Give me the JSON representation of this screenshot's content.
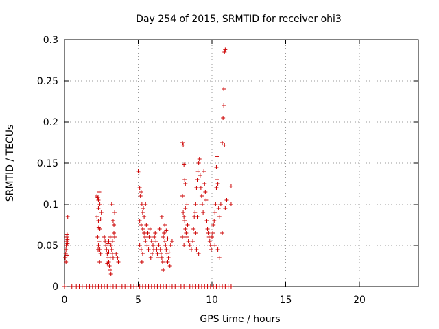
{
  "chart_data": {
    "type": "scatter",
    "title": "Day 254 of 2015, SRMTID for receiver ohi3",
    "xlabel": "GPS time / hours",
    "ylabel": "SRMTID / TECUs",
    "xlim": [
      0,
      24
    ],
    "ylim": [
      0,
      0.3
    ],
    "xticks": [
      "0",
      "5",
      "10",
      "15",
      "20"
    ],
    "xtick_values": [
      0,
      5,
      10,
      15,
      20
    ],
    "yticks": [
      "0",
      "0.05",
      "0.1",
      "0.15",
      "0.2",
      "0.25",
      "0.3"
    ],
    "ytick_values": [
      0,
      0.05,
      0.1,
      0.15,
      0.2,
      0.25,
      0.3
    ],
    "grid": true,
    "marker": "+",
    "color": "#cc0000",
    "series": [
      {
        "name": "SRMTID",
        "points": [
          [
            0.05,
            0.035
          ],
          [
            0.08,
            0.04
          ],
          [
            0.1,
            0.045
          ],
          [
            0.12,
            0.05
          ],
          [
            0.14,
            0.055
          ],
          [
            0.15,
            0.06
          ],
          [
            0.17,
            0.038
          ],
          [
            0.2,
            0.052
          ],
          [
            0.22,
            0.085
          ],
          [
            0.18,
            0.063
          ],
          [
            0.1,
            0.03
          ],
          [
            0.2,
            0.057
          ],
          [
            2.2,
            0.11
          ],
          [
            2.25,
            0.108
          ],
          [
            2.3,
            0.105
          ],
          [
            2.35,
            0.115
          ],
          [
            2.2,
            0.085
          ],
          [
            2.3,
            0.08
          ],
          [
            2.4,
            0.07
          ],
          [
            2.45,
            0.082
          ],
          [
            2.25,
            0.06
          ],
          [
            2.3,
            0.05
          ],
          [
            2.4,
            0.045
          ],
          [
            2.45,
            0.04
          ],
          [
            2.35,
            0.055
          ],
          [
            2.5,
            0.09
          ],
          [
            2.4,
            0.1
          ],
          [
            2.3,
            0.095
          ],
          [
            2.38,
            0.03
          ],
          [
            2.32,
            0.072
          ],
          [
            2.28,
            0.045
          ],
          [
            2.7,
            0.06
          ],
          [
            2.75,
            0.055
          ],
          [
            2.8,
            0.05
          ],
          [
            2.85,
            0.045
          ],
          [
            2.9,
            0.04
          ],
          [
            2.95,
            0.035
          ],
          [
            3.0,
            0.03
          ],
          [
            3.05,
            0.025
          ],
          [
            3.1,
            0.02
          ],
          [
            2.9,
            0.028
          ],
          [
            3.0,
            0.055
          ],
          [
            3.1,
            0.06
          ],
          [
            3.15,
            0.05
          ],
          [
            3.2,
            0.045
          ],
          [
            3.25,
            0.04
          ],
          [
            3.3,
            0.035
          ],
          [
            3.35,
            0.065
          ],
          [
            3.3,
            0.08
          ],
          [
            3.4,
            0.09
          ],
          [
            3.2,
            0.1
          ],
          [
            3.35,
            0.075
          ],
          [
            3.1,
            0.035
          ],
          [
            3.0,
            0.042
          ],
          [
            2.95,
            0.052
          ],
          [
            3.25,
            0.055
          ],
          [
            3.4,
            0.06
          ],
          [
            3.5,
            0.04
          ],
          [
            3.6,
            0.035
          ],
          [
            3.65,
            0.03
          ],
          [
            3.15,
            0.015
          ],
          [
            5.0,
            0.14
          ],
          [
            5.05,
            0.138
          ],
          [
            5.1,
            0.12
          ],
          [
            5.15,
            0.11
          ],
          [
            5.2,
            0.115
          ],
          [
            5.25,
            0.1
          ],
          [
            5.3,
            0.09
          ],
          [
            5.35,
            0.095
          ],
          [
            5.4,
            0.085
          ],
          [
            5.1,
            0.08
          ],
          [
            5.2,
            0.075
          ],
          [
            5.3,
            0.07
          ],
          [
            5.4,
            0.065
          ],
          [
            5.45,
            0.06
          ],
          [
            5.5,
            0.055
          ],
          [
            5.1,
            0.05
          ],
          [
            5.2,
            0.045
          ],
          [
            5.3,
            0.04
          ],
          [
            5.25,
            0.03
          ],
          [
            5.5,
            0.1
          ],
          [
            5.55,
            0.075
          ],
          [
            5.6,
            0.05
          ],
          [
            5.7,
            0.045
          ],
          [
            5.65,
            0.065
          ],
          [
            5.75,
            0.06
          ],
          [
            5.8,
            0.07
          ],
          [
            5.9,
            0.055
          ],
          [
            6.0,
            0.05
          ],
          [
            5.95,
            0.04
          ],
          [
            5.85,
            0.035
          ],
          [
            6.05,
            0.045
          ],
          [
            6.1,
            0.06
          ],
          [
            6.15,
            0.065
          ],
          [
            6.2,
            0.055
          ],
          [
            6.25,
            0.045
          ],
          [
            6.3,
            0.04
          ],
          [
            6.35,
            0.035
          ],
          [
            6.4,
            0.05
          ],
          [
            6.5,
            0.045
          ],
          [
            6.55,
            0.04
          ],
          [
            6.6,
            0.035
          ],
          [
            6.65,
            0.03
          ],
          [
            6.7,
            0.06
          ],
          [
            6.75,
            0.065
          ],
          [
            6.8,
            0.055
          ],
          [
            6.85,
            0.05
          ],
          [
            6.9,
            0.045
          ],
          [
            6.95,
            0.04
          ],
          [
            7.0,
            0.03
          ],
          [
            7.05,
            0.035
          ],
          [
            6.8,
            0.075
          ],
          [
            6.6,
            0.085
          ],
          [
            6.45,
            0.07
          ],
          [
            6.9,
            0.068
          ],
          [
            7.0,
            0.058
          ],
          [
            7.1,
            0.042
          ],
          [
            7.2,
            0.05
          ],
          [
            7.3,
            0.055
          ],
          [
            7.15,
            0.025
          ],
          [
            6.7,
            0.02
          ],
          [
            8.0,
            0.175
          ],
          [
            8.05,
            0.172
          ],
          [
            8.1,
            0.148
          ],
          [
            8.15,
            0.13
          ],
          [
            8.2,
            0.125
          ],
          [
            8.0,
            0.11
          ],
          [
            8.05,
            0.09
          ],
          [
            8.1,
            0.085
          ],
          [
            8.15,
            0.08
          ],
          [
            8.2,
            0.07
          ],
          [
            8.25,
            0.065
          ],
          [
            8.3,
            0.06
          ],
          [
            8.1,
            0.05
          ],
          [
            8.0,
            0.06
          ],
          [
            8.3,
            0.1
          ],
          [
            8.2,
            0.095
          ],
          [
            8.35,
            0.075
          ],
          [
            8.4,
            0.055
          ],
          [
            8.5,
            0.05
          ],
          [
            8.6,
            0.045
          ],
          [
            8.7,
            0.055
          ],
          [
            8.75,
            0.07
          ],
          [
            8.8,
            0.085
          ],
          [
            8.85,
            0.09
          ],
          [
            8.9,
            0.1
          ],
          [
            8.95,
            0.12
          ],
          [
            9.0,
            0.13
          ],
          [
            9.05,
            0.14
          ],
          [
            9.1,
            0.15
          ],
          [
            9.15,
            0.155
          ],
          [
            9.2,
            0.135
          ],
          [
            9.25,
            0.12
          ],
          [
            9.3,
            0.11
          ],
          [
            9.35,
            0.1
          ],
          [
            9.4,
            0.09
          ],
          [
            9.45,
            0.14
          ],
          [
            9.5,
            0.125
          ],
          [
            9.55,
            0.115
          ],
          [
            9.6,
            0.105
          ],
          [
            9.65,
            0.08
          ],
          [
            9.7,
            0.07
          ],
          [
            9.75,
            0.065
          ],
          [
            9.8,
            0.06
          ],
          [
            9.85,
            0.055
          ],
          [
            9.9,
            0.05
          ],
          [
            9.95,
            0.045
          ],
          [
            10.0,
            0.06
          ],
          [
            10.05,
            0.065
          ],
          [
            10.1,
            0.075
          ],
          [
            10.15,
            0.08
          ],
          [
            10.2,
            0.09
          ],
          [
            10.25,
            0.1
          ],
          [
            10.3,
            0.12
          ],
          [
            10.35,
            0.13
          ],
          [
            10.4,
            0.125
          ],
          [
            10.45,
            0.095
          ],
          [
            10.5,
            0.085
          ],
          [
            10.3,
            0.145
          ],
          [
            10.35,
            0.158
          ],
          [
            9.0,
            0.085
          ],
          [
            8.9,
            0.065
          ],
          [
            8.95,
            0.045
          ],
          [
            9.1,
            0.04
          ],
          [
            10.2,
            0.05
          ],
          [
            10.4,
            0.045
          ],
          [
            10.5,
            0.035
          ],
          [
            10.6,
            0.1
          ],
          [
            10.7,
            0.175
          ],
          [
            10.75,
            0.205
          ],
          [
            10.8,
            0.22
          ],
          [
            10.8,
            0.24
          ],
          [
            10.85,
            0.285
          ],
          [
            10.9,
            0.288
          ],
          [
            10.85,
            0.172
          ],
          [
            10.9,
            0.095
          ],
          [
            10.7,
            0.065
          ],
          [
            11.0,
            0.105
          ],
          [
            11.3,
            0.122
          ],
          [
            11.3,
            0.1
          ],
          [
            0,
            0
          ],
          [
            0.5,
            0
          ],
          [
            0.8,
            0
          ],
          [
            1.0,
            0
          ],
          [
            1.2,
            0
          ],
          [
            1.5,
            0
          ],
          [
            1.7,
            0
          ],
          [
            1.9,
            0
          ],
          [
            2.1,
            0
          ],
          [
            2.3,
            0
          ],
          [
            2.5,
            0
          ],
          [
            2.7,
            0
          ],
          [
            2.9,
            0
          ],
          [
            3.1,
            0
          ],
          [
            3.3,
            0
          ],
          [
            3.5,
            0
          ],
          [
            3.7,
            0
          ],
          [
            3.9,
            0
          ],
          [
            4.1,
            0
          ],
          [
            4.3,
            0
          ],
          [
            4.5,
            0
          ],
          [
            4.7,
            0
          ],
          [
            4.9,
            0
          ],
          [
            5.1,
            0
          ],
          [
            5.3,
            0
          ],
          [
            5.5,
            0
          ],
          [
            5.7,
            0
          ],
          [
            5.9,
            0
          ],
          [
            6.1,
            0
          ],
          [
            6.3,
            0
          ],
          [
            6.5,
            0
          ],
          [
            6.7,
            0
          ],
          [
            6.9,
            0
          ],
          [
            7.1,
            0
          ],
          [
            7.3,
            0
          ],
          [
            7.5,
            0
          ],
          [
            7.7,
            0
          ],
          [
            7.9,
            0
          ],
          [
            8.1,
            0
          ],
          [
            8.3,
            0
          ],
          [
            8.5,
            0
          ],
          [
            8.7,
            0
          ],
          [
            8.9,
            0
          ],
          [
            9.1,
            0
          ],
          [
            9.3,
            0
          ],
          [
            9.5,
            0
          ],
          [
            9.7,
            0
          ],
          [
            9.9,
            0
          ],
          [
            10.1,
            0
          ],
          [
            10.3,
            0
          ],
          [
            10.5,
            0
          ],
          [
            10.7,
            0
          ],
          [
            10.9,
            0
          ],
          [
            11.1,
            0
          ],
          [
            11.3,
            0
          ]
        ]
      }
    ]
  }
}
